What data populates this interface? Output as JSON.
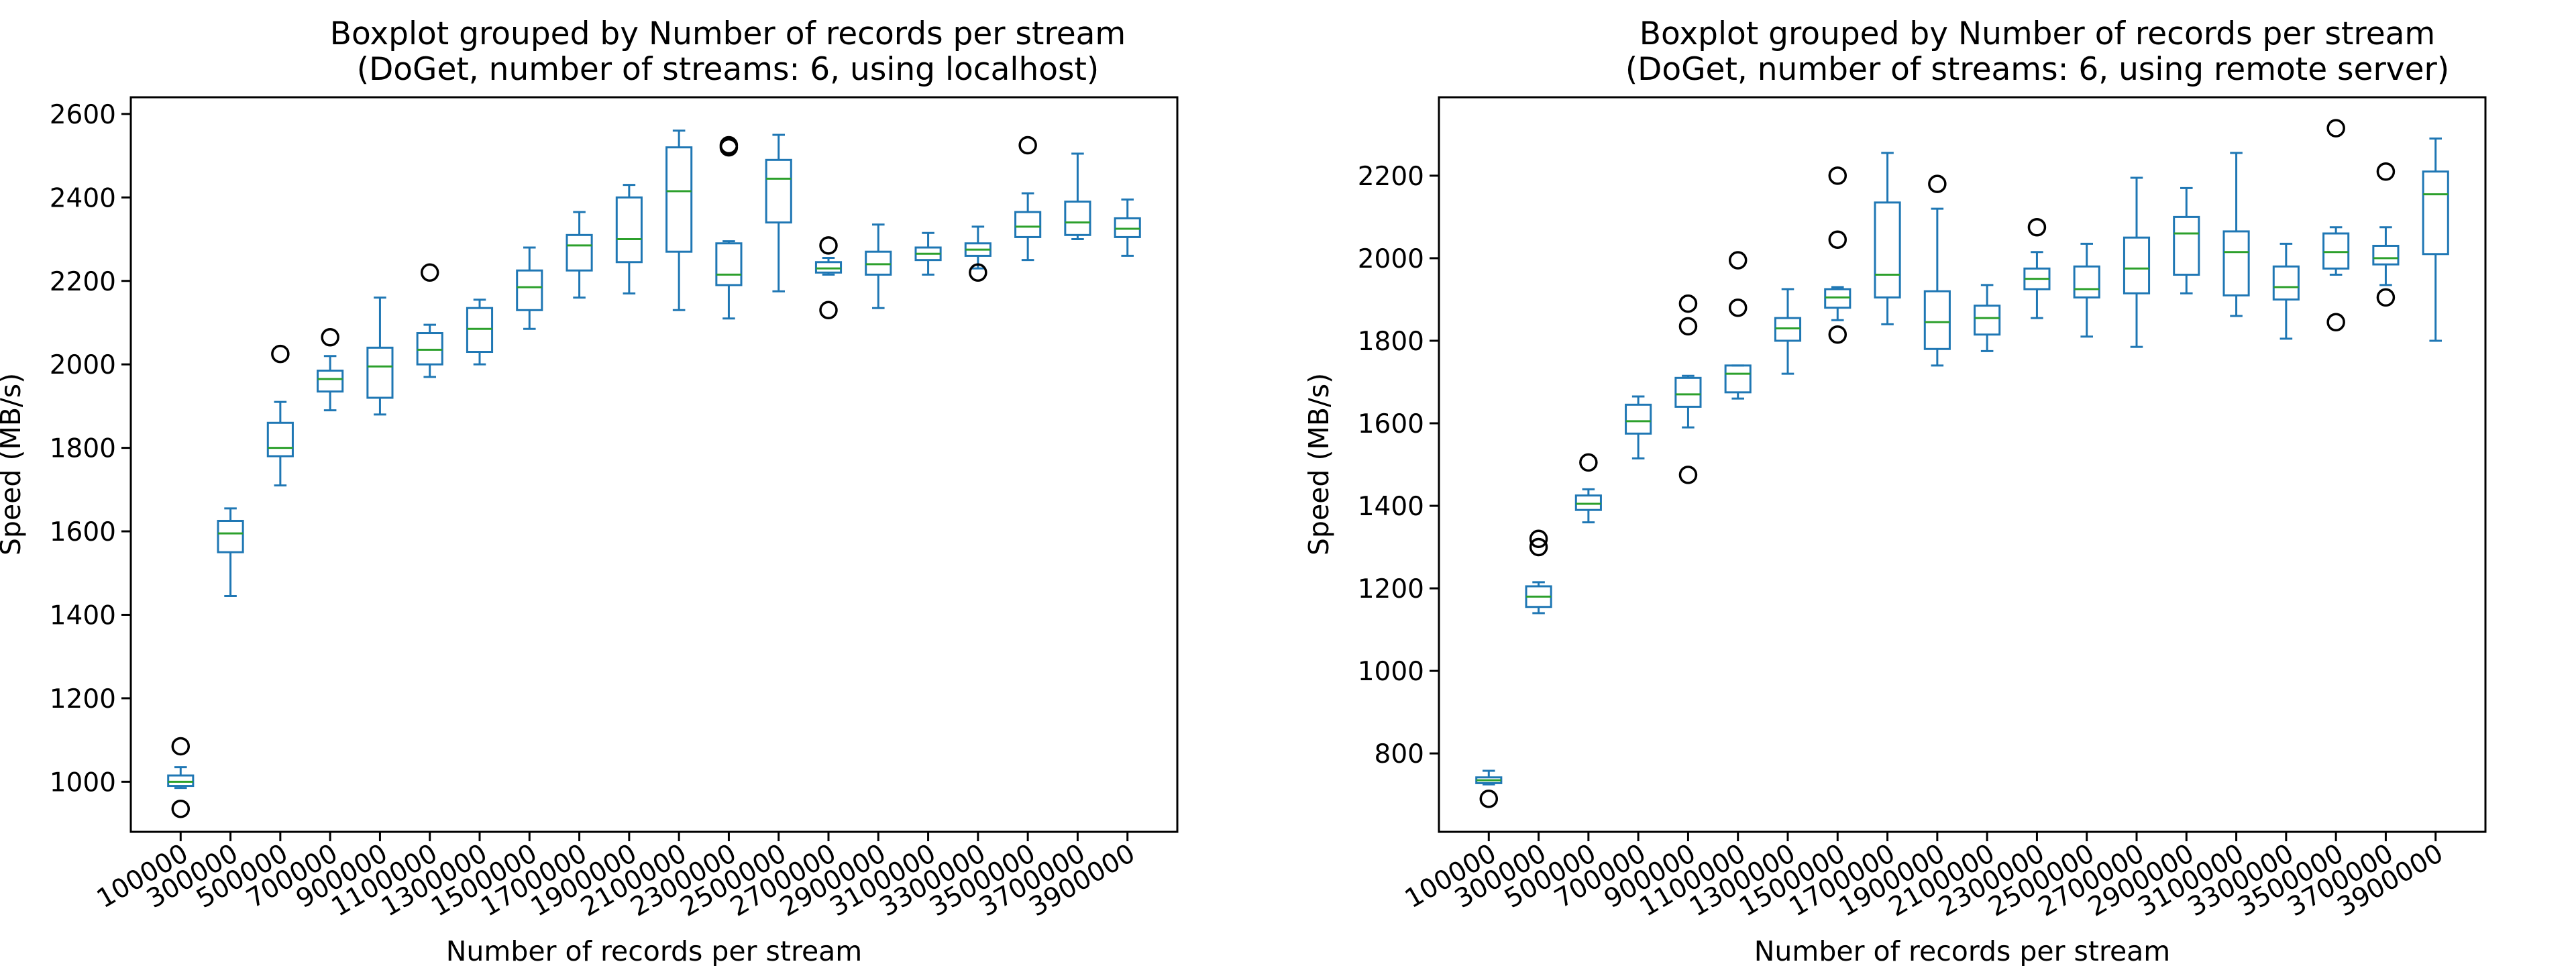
{
  "colors": {
    "box": "#1f77b4",
    "median": "#2ca02c",
    "whisker": "#1f77b4",
    "flier": "#000000",
    "background": "#ffffff",
    "axes": "#000000"
  },
  "chart_data": [
    {
      "type": "boxplot",
      "title_line1": "Boxplot grouped by Number of records per stream",
      "title_line2": "(DoGet, number of streams: 6, using localhost)",
      "xlabel": "Number of records per stream",
      "ylabel": "Speed (MB/s)",
      "ylim": [
        880,
        2640
      ],
      "yticks": [
        1000,
        1200,
        1400,
        1600,
        1800,
        2000,
        2200,
        2400,
        2600
      ],
      "grid": false,
      "categories": [
        "100000",
        "300000",
        "500000",
        "700000",
        "900000",
        "1100000",
        "1300000",
        "1500000",
        "1700000",
        "1900000",
        "2100000",
        "2300000",
        "2500000",
        "2700000",
        "2900000",
        "3100000",
        "3300000",
        "3500000",
        "3700000",
        "3900000"
      ],
      "boxes": [
        {
          "whislo": 985,
          "q1": 990,
          "med": 1000,
          "q3": 1015,
          "whishi": 1035,
          "fliers": [
            1085,
            935
          ]
        },
        {
          "whislo": 1445,
          "q1": 1550,
          "med": 1595,
          "q3": 1625,
          "whishi": 1655,
          "fliers": []
        },
        {
          "whislo": 1710,
          "q1": 1780,
          "med": 1800,
          "q3": 1860,
          "whishi": 1910,
          "fliers": [
            2025
          ]
        },
        {
          "whislo": 1890,
          "q1": 1935,
          "med": 1965,
          "q3": 1985,
          "whishi": 2020,
          "fliers": [
            2065
          ]
        },
        {
          "whislo": 1880,
          "q1": 1920,
          "med": 1995,
          "q3": 2040,
          "whishi": 2160,
          "fliers": []
        },
        {
          "whislo": 1970,
          "q1": 2000,
          "med": 2035,
          "q3": 2075,
          "whishi": 2095,
          "fliers": [
            2220
          ]
        },
        {
          "whislo": 2000,
          "q1": 2030,
          "med": 2085,
          "q3": 2135,
          "whishi": 2155,
          "fliers": []
        },
        {
          "whislo": 2085,
          "q1": 2130,
          "med": 2185,
          "q3": 2225,
          "whishi": 2280,
          "fliers": []
        },
        {
          "whislo": 2160,
          "q1": 2225,
          "med": 2285,
          "q3": 2310,
          "whishi": 2365,
          "fliers": []
        },
        {
          "whislo": 2170,
          "q1": 2245,
          "med": 2300,
          "q3": 2400,
          "whishi": 2430,
          "fliers": []
        },
        {
          "whislo": 2130,
          "q1": 2270,
          "med": 2415,
          "q3": 2520,
          "whishi": 2560,
          "fliers": []
        },
        {
          "whislo": 2110,
          "q1": 2190,
          "med": 2215,
          "q3": 2290,
          "whishi": 2295,
          "fliers": [
            2520,
            2525
          ]
        },
        {
          "whislo": 2175,
          "q1": 2340,
          "med": 2445,
          "q3": 2490,
          "whishi": 2550,
          "fliers": []
        },
        {
          "whislo": 2215,
          "q1": 2220,
          "med": 2230,
          "q3": 2245,
          "whishi": 2255,
          "fliers": [
            2285,
            2130
          ]
        },
        {
          "whislo": 2135,
          "q1": 2215,
          "med": 2240,
          "q3": 2270,
          "whishi": 2335,
          "fliers": []
        },
        {
          "whislo": 2215,
          "q1": 2250,
          "med": 2265,
          "q3": 2280,
          "whishi": 2315,
          "fliers": []
        },
        {
          "whislo": 2230,
          "q1": 2260,
          "med": 2275,
          "q3": 2290,
          "whishi": 2330,
          "fliers": [
            2220
          ]
        },
        {
          "whislo": 2250,
          "q1": 2305,
          "med": 2330,
          "q3": 2365,
          "whishi": 2410,
          "fliers": [
            2525
          ]
        },
        {
          "whislo": 2300,
          "q1": 2310,
          "med": 2340,
          "q3": 2390,
          "whishi": 2505,
          "fliers": []
        },
        {
          "whislo": 2260,
          "q1": 2305,
          "med": 2325,
          "q3": 2350,
          "whishi": 2395,
          "fliers": []
        }
      ]
    },
    {
      "type": "boxplot",
      "title_line1": "Boxplot grouped by Number of records per stream",
      "title_line2": "(DoGet, number of streams: 6, using remote server)",
      "xlabel": "Number of records per stream",
      "ylabel": "Speed (MB/s)",
      "ylim": [
        610,
        2390
      ],
      "yticks": [
        800,
        1000,
        1200,
        1400,
        1600,
        1800,
        2000,
        2200
      ],
      "grid": false,
      "categories": [
        "100000",
        "300000",
        "500000",
        "700000",
        "900000",
        "1100000",
        "1300000",
        "1500000",
        "1700000",
        "1900000",
        "2100000",
        "2300000",
        "2500000",
        "2700000",
        "2900000",
        "3100000",
        "3300000",
        "3500000",
        "3700000",
        "3900000"
      ],
      "boxes": [
        {
          "whislo": 725,
          "q1": 728,
          "med": 735,
          "q3": 742,
          "whishi": 758,
          "fliers": [
            690
          ]
        },
        {
          "whislo": 1140,
          "q1": 1155,
          "med": 1180,
          "q3": 1205,
          "whishi": 1215,
          "fliers": [
            1300,
            1320
          ]
        },
        {
          "whislo": 1360,
          "q1": 1390,
          "med": 1405,
          "q3": 1425,
          "whishi": 1440,
          "fliers": [
            1505
          ]
        },
        {
          "whislo": 1515,
          "q1": 1575,
          "med": 1605,
          "q3": 1645,
          "whishi": 1665,
          "fliers": []
        },
        {
          "whislo": 1590,
          "q1": 1640,
          "med": 1670,
          "q3": 1710,
          "whishi": 1715,
          "fliers": [
            1890,
            1835,
            1475
          ]
        },
        {
          "whislo": 1660,
          "q1": 1675,
          "med": 1720,
          "q3": 1740,
          "whishi": 1740,
          "fliers": [
            1995,
            1880
          ]
        },
        {
          "whislo": 1720,
          "q1": 1800,
          "med": 1830,
          "q3": 1855,
          "whishi": 1925,
          "fliers": []
        },
        {
          "whislo": 1850,
          "q1": 1880,
          "med": 1905,
          "q3": 1925,
          "whishi": 1930,
          "fliers": [
            2200,
            2045,
            1815
          ]
        },
        {
          "whislo": 1840,
          "q1": 1905,
          "med": 1960,
          "q3": 2135,
          "whishi": 2255,
          "fliers": []
        },
        {
          "whislo": 1740,
          "q1": 1780,
          "med": 1845,
          "q3": 1920,
          "whishi": 2120,
          "fliers": [
            2180
          ]
        },
        {
          "whislo": 1775,
          "q1": 1815,
          "med": 1855,
          "q3": 1885,
          "whishi": 1935,
          "fliers": []
        },
        {
          "whislo": 1855,
          "q1": 1925,
          "med": 1950,
          "q3": 1975,
          "whishi": 2015,
          "fliers": [
            2075
          ]
        },
        {
          "whislo": 1810,
          "q1": 1905,
          "med": 1925,
          "q3": 1980,
          "whishi": 2035,
          "fliers": []
        },
        {
          "whislo": 1785,
          "q1": 1915,
          "med": 1975,
          "q3": 2050,
          "whishi": 2195,
          "fliers": []
        },
        {
          "whislo": 1915,
          "q1": 1960,
          "med": 2060,
          "q3": 2100,
          "whishi": 2170,
          "fliers": []
        },
        {
          "whislo": 1860,
          "q1": 1910,
          "med": 2015,
          "q3": 2065,
          "whishi": 2255,
          "fliers": []
        },
        {
          "whislo": 1805,
          "q1": 1900,
          "med": 1930,
          "q3": 1980,
          "whishi": 2035,
          "fliers": []
        },
        {
          "whislo": 1960,
          "q1": 1975,
          "med": 2015,
          "q3": 2060,
          "whishi": 2075,
          "fliers": [
            2315,
            1845
          ]
        },
        {
          "whislo": 1935,
          "q1": 1985,
          "med": 2000,
          "q3": 2030,
          "whishi": 2075,
          "fliers": [
            2210,
            1905
          ]
        },
        {
          "whislo": 1800,
          "q1": 2010,
          "med": 2155,
          "q3": 2210,
          "whishi": 2290,
          "fliers": []
        }
      ]
    }
  ]
}
